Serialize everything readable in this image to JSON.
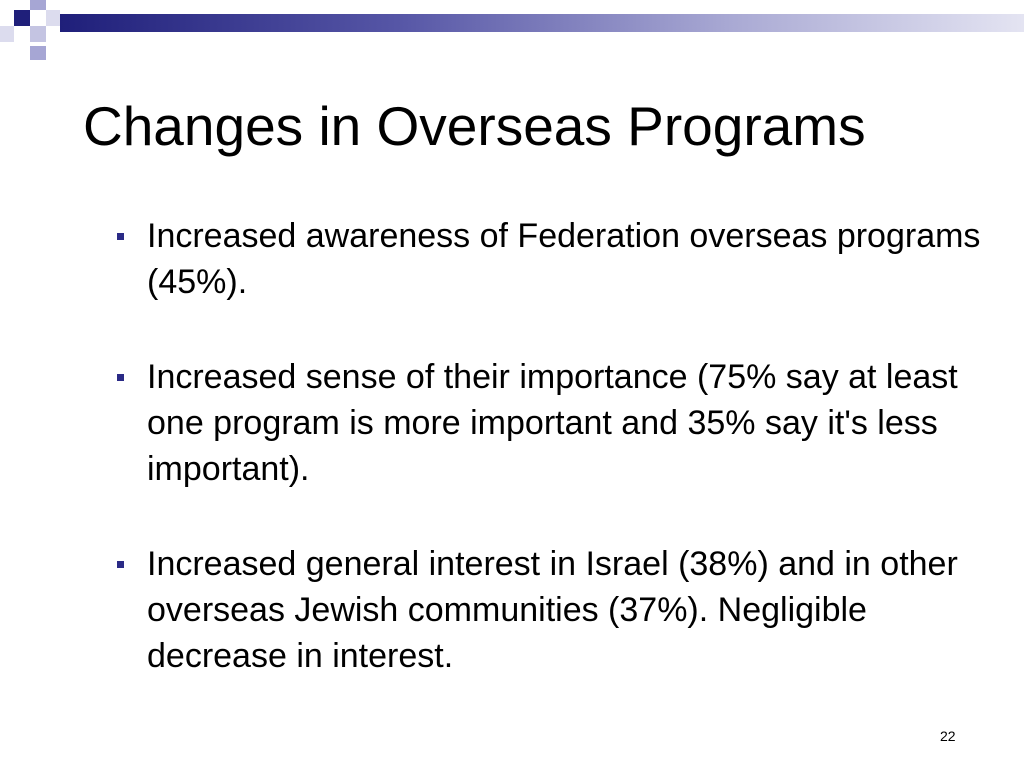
{
  "slide": {
    "title": "Changes in Overseas Programs",
    "bullets": [
      {
        "text": "Increased awareness of Federation overseas programs (45%)."
      },
      {
        "text": "Increased sense of their importance (75% say at least one program is more important and 35% say it's less important)."
      },
      {
        "text": "Increased general interest in Israel (38%) and in other overseas Jewish communities (37%). Negligible decrease in interest."
      }
    ],
    "page_number": "22"
  },
  "colors": {
    "accent_dark": "#1f1f7a",
    "accent_light": "#a6a6d4",
    "bullet": "#2a2a86"
  }
}
